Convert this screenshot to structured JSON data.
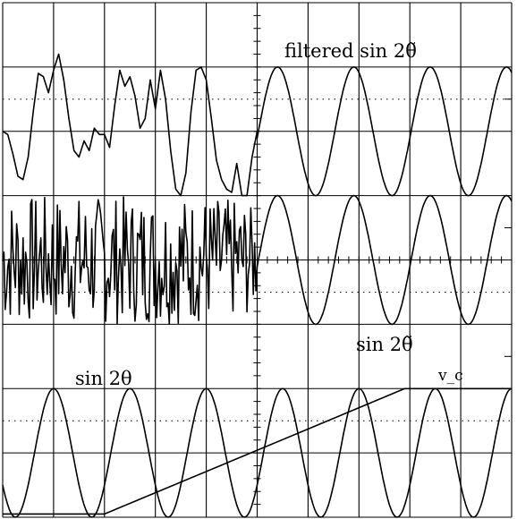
{
  "chart_data": {
    "type": "line",
    "instrument": "oscilloscope",
    "grid": {
      "divisions_x": 10,
      "divisions_y": 8,
      "minor_ticks_per_division": 5,
      "on": true
    },
    "x": {
      "unit": "div",
      "range": [
        0,
        10
      ]
    },
    "y": {
      "unit": "div",
      "range": [
        0,
        8
      ]
    },
    "colors": {
      "trace": "#000000",
      "grid": "#000000",
      "background": "#ffffff"
    },
    "labels": {
      "filtered": "filtered sin 2θ̃",
      "estimated": "sin 2θ̃",
      "actual": "sin 2θ",
      "vc": "v_c"
    },
    "series": [
      {
        "id": "filtered",
        "label_ref": "filtered",
        "baseline_div": 6,
        "note": "noisy before x≈5 div, then clean sinusoid",
        "period_div": 1.5,
        "amplitude_div": 1.0,
        "points": [
          [
            0.0,
            6.0
          ],
          [
            0.1,
            5.95
          ],
          [
            0.2,
            5.65
          ],
          [
            0.3,
            5.3
          ],
          [
            0.4,
            5.25
          ],
          [
            0.5,
            5.6
          ],
          [
            0.6,
            6.3
          ],
          [
            0.7,
            6.9
          ],
          [
            0.8,
            6.85
          ],
          [
            0.9,
            6.6
          ],
          [
            1.0,
            6.95
          ],
          [
            1.1,
            7.2
          ],
          [
            1.2,
            6.8
          ],
          [
            1.3,
            6.2
          ],
          [
            1.4,
            5.7
          ],
          [
            1.5,
            5.6
          ],
          [
            1.6,
            5.85
          ],
          [
            1.7,
            5.7
          ],
          [
            1.8,
            6.05
          ],
          [
            1.9,
            5.95
          ],
          [
            2.0,
            5.95
          ],
          [
            2.1,
            5.75
          ],
          [
            2.2,
            6.4
          ],
          [
            2.3,
            6.95
          ],
          [
            2.4,
            6.7
          ],
          [
            2.5,
            6.85
          ],
          [
            2.6,
            6.55
          ],
          [
            2.7,
            6.05
          ],
          [
            2.8,
            6.2
          ],
          [
            2.9,
            6.8
          ],
          [
            3.0,
            6.35
          ],
          [
            3.1,
            6.95
          ],
          [
            3.2,
            6.5
          ],
          [
            3.3,
            5.7
          ],
          [
            3.4,
            5.1
          ],
          [
            3.5,
            5.0
          ],
          [
            3.6,
            5.35
          ],
          [
            3.7,
            6.3
          ],
          [
            3.8,
            6.95
          ],
          [
            3.9,
            7.0
          ],
          [
            4.0,
            6.8
          ],
          [
            4.1,
            6.2
          ],
          [
            4.2,
            5.55
          ],
          [
            4.3,
            5.25
          ],
          [
            4.4,
            5.1
          ],
          [
            4.5,
            5.05
          ],
          [
            4.6,
            5.5
          ],
          [
            4.7,
            5.0
          ],
          [
            4.8,
            5.0
          ],
          [
            4.9,
            5.6
          ],
          [
            5.0,
            6.0
          ]
        ],
        "clean_start_div": 5.0,
        "clean_end_div": 10.0,
        "clean_phase_peak_div": 5.4
      },
      {
        "id": "estimated",
        "label_ref": "estimated",
        "baseline_div": 4,
        "note": "dense chatter before x≈5 div, then clean sinusoid",
        "period_div": 1.5,
        "amplitude_div": 1.0,
        "noise_envelope": [
          [
            0.0,
            1.0
          ],
          [
            1.0,
            1.0
          ],
          [
            2.0,
            1.0
          ],
          [
            3.0,
            1.0
          ],
          [
            4.0,
            1.0
          ],
          [
            4.8,
            0.9
          ],
          [
            5.0,
            0.7
          ]
        ],
        "clean_start_div": 5.0,
        "clean_end_div": 10.0,
        "clean_phase_peak_div": 5.4
      },
      {
        "id": "actual",
        "label_ref": "actual",
        "baseline_div": 1,
        "note": "clean sinusoid across full width",
        "period_div": 1.5,
        "amplitude_div": 1.0,
        "phase_peak_div": 1.0,
        "start_div": 0.0,
        "end_div": 10.0
      },
      {
        "id": "vc",
        "label_ref": "vc",
        "note": "ramp voltage",
        "points": [
          [
            0.0,
            0.05
          ],
          [
            2.0,
            0.05
          ],
          [
            7.9,
            2.0
          ],
          [
            10.0,
            2.0
          ]
        ]
      }
    ]
  }
}
